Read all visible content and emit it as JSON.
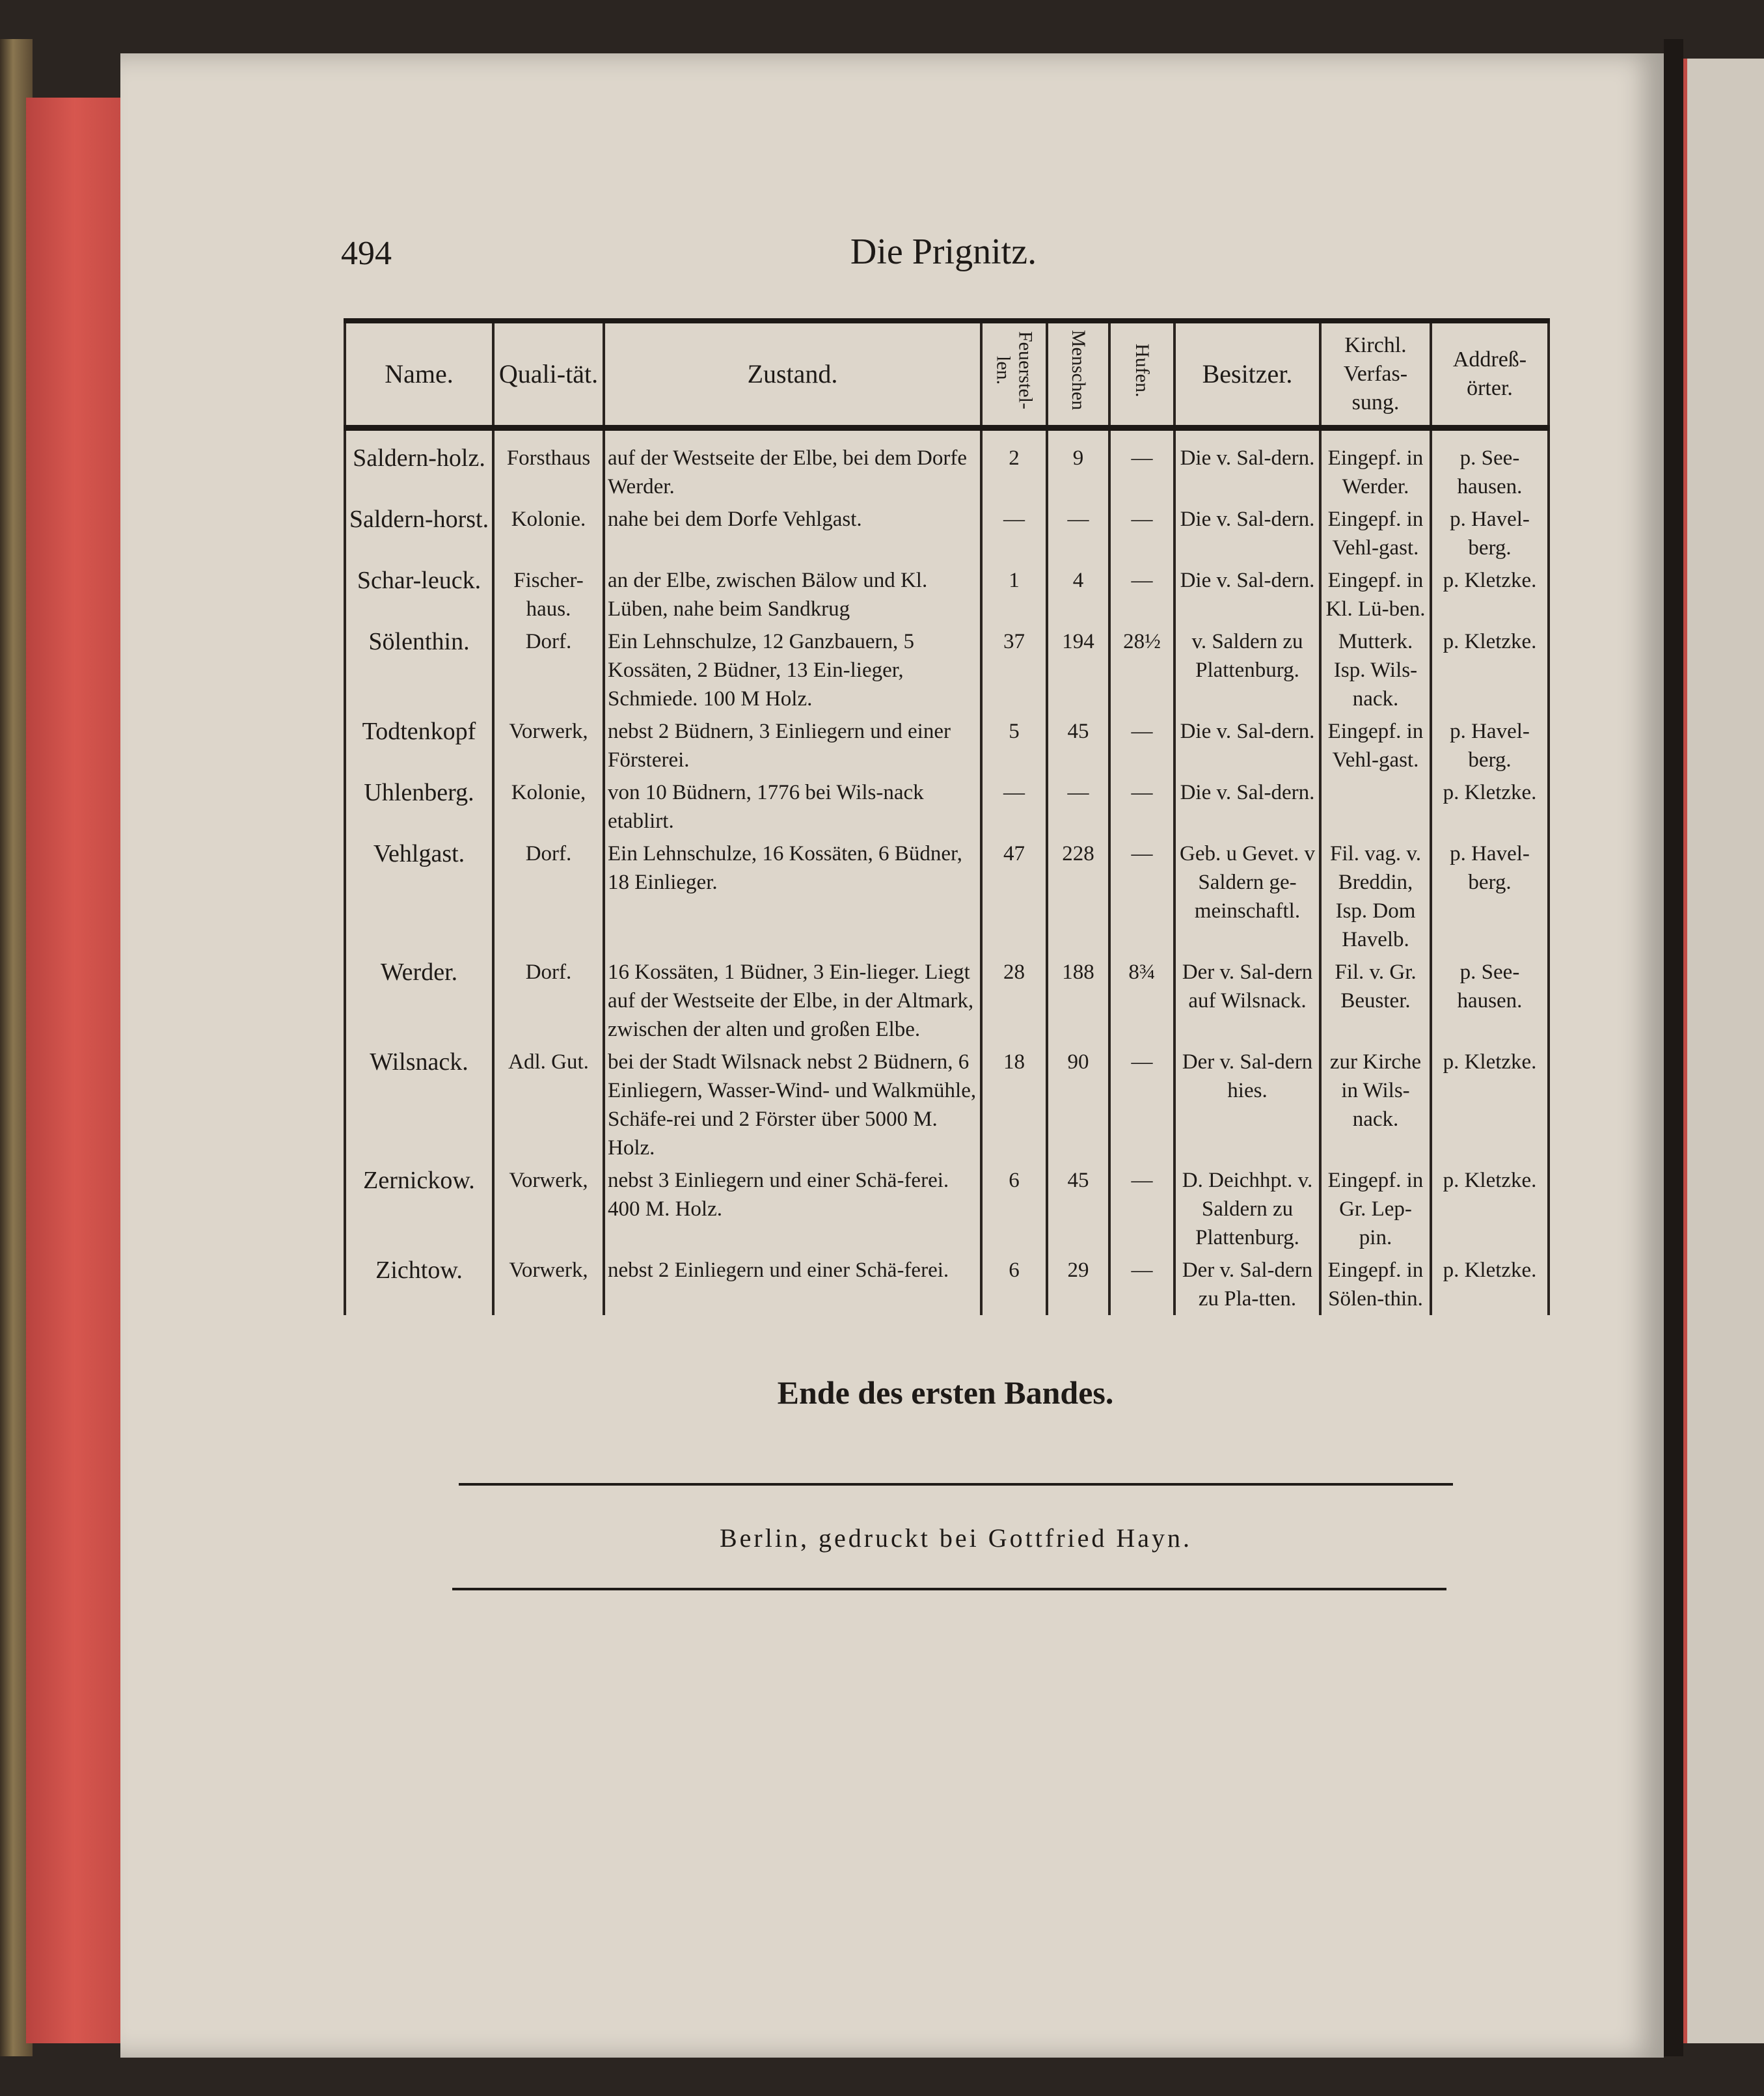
{
  "page": {
    "number": "494",
    "running_title": "Die Prignitz."
  },
  "table": {
    "headers": [
      "Name.",
      "Quali-tät.",
      "Zustand.",
      "Feuerstel-len.",
      "Menschen",
      "Hufen.",
      "Besitzer.",
      "Kirchl. Verfas-sung.",
      "Addreß-örter."
    ],
    "rows": [
      {
        "name": "Saldern-holz.",
        "qual": "Forsthaus",
        "zustand": "auf der Westseite der Elbe, bei dem Dorfe Werder.",
        "feuer": "2",
        "menschen": "9",
        "hufen": "—",
        "besitzer": "Die v. Sal-dern.",
        "kirchl": "Eingepf. in Werder.",
        "addr": "p. See-hausen."
      },
      {
        "name": "Saldern-horst.",
        "qual": "Kolonie.",
        "zustand": "nahe bei dem Dorfe Vehlgast.",
        "feuer": "—",
        "menschen": "—",
        "hufen": "—",
        "besitzer": "Die v. Sal-dern.",
        "kirchl": "Eingepf. in Vehl-gast.",
        "addr": "p. Havel-berg."
      },
      {
        "name": "Schar-leuck.",
        "qual": "Fischer-haus.",
        "zustand": "an der Elbe, zwischen Bälow und Kl. Lüben, nahe beim Sandkrug",
        "feuer": "1",
        "menschen": "4",
        "hufen": "—",
        "besitzer": "Die v. Sal-dern.",
        "kirchl": "Eingepf. in Kl. Lü-ben.",
        "addr": "p. Kletzke."
      },
      {
        "name": "Sölenthin.",
        "qual": "Dorf.",
        "zustand": "Ein Lehnschulze, 12 Ganzbauern, 5 Kossäten, 2 Büdner, 13 Ein-lieger, Schmiede. 100 M Holz.",
        "feuer": "37",
        "menschen": "194",
        "hufen": "28½",
        "besitzer": "v. Saldern zu Plattenburg.",
        "kirchl": "Mutterk. Isp. Wils-nack.",
        "addr": "p. Kletzke."
      },
      {
        "name": "Todtenkopf",
        "qual": "Vorwerk,",
        "zustand": "nebst 2 Büdnern, 3 Einliegern und einer Försterei.",
        "feuer": "5",
        "menschen": "45",
        "hufen": "—",
        "besitzer": "Die v. Sal-dern.",
        "kirchl": "Eingepf. in Vehl-gast.",
        "addr": "p. Havel-berg."
      },
      {
        "name": "Uhlenberg.",
        "qual": "Kolonie,",
        "zustand": "von 10 Büdnern, 1776 bei Wils-nack etablirt.",
        "feuer": "—",
        "menschen": "—",
        "hufen": "—",
        "besitzer": "Die v. Sal-dern.",
        "kirchl": "",
        "addr": "p. Kletzke."
      },
      {
        "name": "Vehlgast.",
        "qual": "Dorf.",
        "zustand": "Ein Lehnschulze, 16 Kossäten, 6 Büdner, 18 Einlieger.",
        "feuer": "47",
        "menschen": "228",
        "hufen": "—",
        "besitzer": "Geb. u Gevet. v Saldern ge-meinschaftl.",
        "kirchl": "Fil. vag. v. Breddin, Isp. Dom Havelb.",
        "addr": "p. Havel-berg."
      },
      {
        "name": "Werder.",
        "qual": "Dorf.",
        "zustand": "16 Kossäten, 1 Büdner, 3 Ein-lieger. Liegt auf der Westseite der Elbe, in der Altmark, zwischen der alten und großen Elbe.",
        "feuer": "28",
        "menschen": "188",
        "hufen": "8¾",
        "besitzer": "Der v. Sal-dern auf Wilsnack.",
        "kirchl": "Fil. v. Gr. Beuster.",
        "addr": "p. See-hausen."
      },
      {
        "name": "Wilsnack.",
        "qual": "Adl. Gut.",
        "zustand": "bei der Stadt Wilsnack nebst 2 Büdnern, 6 Einliegern, Wasser-Wind- und Walkmühle, Schäfe-rei und 2 Förster über 5000 M. Holz.",
        "feuer": "18",
        "menschen": "90",
        "hufen": "—",
        "besitzer": "Der v. Sal-dern hies.",
        "kirchl": "zur Kirche in Wils-nack.",
        "addr": "p. Kletzke."
      },
      {
        "name": "Zernickow.",
        "qual": "Vorwerk,",
        "zustand": "nebst 3 Einliegern und einer Schä-ferei. 400 M. Holz.",
        "feuer": "6",
        "menschen": "45",
        "hufen": "—",
        "besitzer": "D. Deichhpt. v. Saldern zu Plattenburg.",
        "kirchl": "Eingepf. in Gr. Lep-pin.",
        "addr": "p. Kletzke."
      },
      {
        "name": "Zichtow.",
        "qual": "Vorwerk,",
        "zustand": "nebst 2 Einliegern und einer Schä-ferei.",
        "feuer": "6",
        "menschen": "29",
        "hufen": "—",
        "besitzer": "Der v. Sal-dern zu Pla-tten.",
        "kirchl": "Eingepf. in Sölen-thin.",
        "addr": "p. Kletzke."
      }
    ]
  },
  "footer": {
    "end_text": "Ende des ersten Bandes.",
    "imprint": "Berlin, gedruckt bei Gottfried Hayn."
  },
  "colors": {
    "paper": "#ddd6cb",
    "ink": "#1e1a17",
    "page_edge": "#d7574f"
  }
}
